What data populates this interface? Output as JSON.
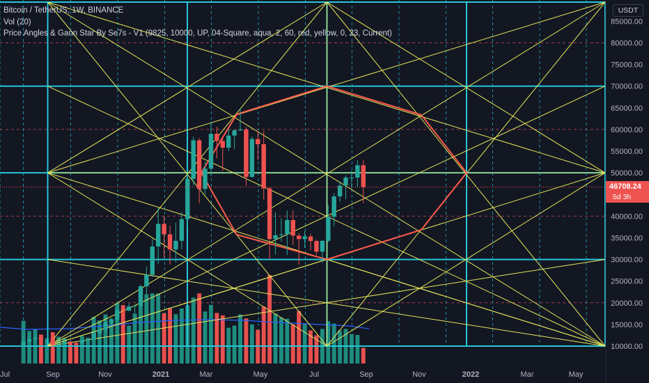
{
  "legend": {
    "title": "Bitcoin / TetherUS, 1W, BINANCE",
    "volume": "Vol (20)",
    "indicator": "Price Angles & Gann Star By Se7s - V1 (9825, 10000, UP, 04-Square, aqua, 2, 60, red, yellow, 0, 23, Current)"
  },
  "price_axis": {
    "unit_label": "USDT",
    "ticks": [
      "85000.00",
      "80000.00",
      "75000.00",
      "70000.00",
      "65000.00",
      "60000.00",
      "55000.00",
      "50000.00",
      "45000.00",
      "40000.00",
      "35000.00",
      "30000.00",
      "25000.00",
      "20000.00",
      "15000.00",
      "10000.00"
    ],
    "current_price": "46708.24",
    "countdown": "5d 3h"
  },
  "time_axis": {
    "ticks": [
      {
        "label": "Jul",
        "bold": false
      },
      {
        "label": "Sep",
        "bold": false
      },
      {
        "label": "Nov",
        "bold": false
      },
      {
        "label": "2021",
        "bold": true
      },
      {
        "label": "Mar",
        "bold": false
      },
      {
        "label": "May",
        "bold": false
      },
      {
        "label": "Jul",
        "bold": false
      },
      {
        "label": "Sep",
        "bold": false
      },
      {
        "label": "Nov",
        "bold": false
      },
      {
        "label": "2022",
        "bold": true
      },
      {
        "label": "Mar",
        "bold": false
      },
      {
        "label": "May",
        "bold": false
      }
    ]
  },
  "colors": {
    "background": "#131722",
    "up": "#26a69a",
    "down": "#ef5350",
    "volume_up": "#1e8c7e",
    "volume_down": "#e8514f",
    "square_lines": "#26c6da",
    "angle_lines": "#e6e65a",
    "star_lines": "#ff5a4d",
    "volume_ma": "#2962ff",
    "axis_text": "#b2b5be"
  },
  "chart_data": {
    "type": "candlestick",
    "title": "Bitcoin / TetherUS, 1W, BINANCE",
    "interval": "1W",
    "ylim": [
      8000,
      88000
    ],
    "x_range": [
      "2020-06-29",
      "2022-06-06"
    ],
    "gann_square": {
      "price_levels": [
        10000,
        30000,
        50000,
        70000,
        90000
      ]
    },
    "candles": [
      {
        "date": "2020-07-27",
        "o": 9950,
        "h": 12100,
        "l": 9850,
        "c": 11050
      },
      {
        "date": "2020-08-03",
        "o": 11050,
        "h": 12100,
        "l": 10800,
        "c": 11570
      },
      {
        "date": "2020-08-10",
        "o": 11570,
        "h": 12480,
        "l": 11150,
        "c": 11850
      },
      {
        "date": "2020-08-17",
        "o": 11850,
        "h": 12450,
        "l": 11350,
        "c": 11650
      },
      {
        "date": "2020-08-24",
        "o": 11650,
        "h": 11950,
        "l": 11150,
        "c": 11700
      },
      {
        "date": "2020-08-31",
        "o": 11700,
        "h": 12050,
        "l": 9850,
        "c": 10250
      },
      {
        "date": "2020-09-07",
        "o": 10250,
        "h": 10750,
        "l": 9900,
        "c": 10350
      },
      {
        "date": "2020-09-14",
        "o": 10350,
        "h": 11200,
        "l": 10300,
        "c": 11050
      },
      {
        "date": "2020-09-21",
        "o": 11050,
        "h": 11100,
        "l": 10150,
        "c": 10750
      },
      {
        "date": "2020-09-28",
        "o": 10750,
        "h": 10950,
        "l": 10350,
        "c": 10650
      },
      {
        "date": "2020-10-05",
        "o": 10650,
        "h": 11450,
        "l": 10550,
        "c": 11380
      },
      {
        "date": "2020-10-12",
        "o": 11380,
        "h": 11750,
        "l": 11200,
        "c": 11500
      },
      {
        "date": "2020-10-19",
        "o": 11500,
        "h": 13250,
        "l": 11400,
        "c": 13050
      },
      {
        "date": "2020-10-26",
        "o": 13050,
        "h": 14000,
        "l": 12900,
        "c": 13800
      },
      {
        "date": "2020-11-02",
        "o": 13800,
        "h": 15950,
        "l": 13300,
        "c": 15480
      },
      {
        "date": "2020-11-09",
        "o": 15480,
        "h": 16500,
        "l": 14800,
        "c": 16050
      },
      {
        "date": "2020-11-16",
        "o": 16050,
        "h": 18800,
        "l": 15900,
        "c": 18400
      },
      {
        "date": "2020-11-23",
        "o": 18400,
        "h": 19450,
        "l": 16250,
        "c": 18200
      },
      {
        "date": "2020-11-30",
        "o": 18200,
        "h": 19900,
        "l": 18000,
        "c": 19150
      },
      {
        "date": "2020-12-07",
        "o": 19150,
        "h": 19400,
        "l": 17600,
        "c": 19300
      },
      {
        "date": "2020-12-14",
        "o": 19300,
        "h": 24200,
        "l": 19000,
        "c": 23800
      },
      {
        "date": "2020-12-21",
        "o": 23800,
        "h": 28400,
        "l": 21900,
        "c": 26450
      },
      {
        "date": "2020-12-28",
        "o": 26450,
        "h": 34800,
        "l": 26000,
        "c": 33000
      },
      {
        "date": "2021-01-04",
        "o": 33000,
        "h": 41950,
        "l": 29000,
        "c": 38200
      },
      {
        "date": "2021-01-11",
        "o": 38200,
        "h": 40100,
        "l": 30400,
        "c": 35800
      },
      {
        "date": "2021-01-18",
        "o": 35800,
        "h": 37850,
        "l": 28800,
        "c": 32300
      },
      {
        "date": "2021-01-25",
        "o": 32300,
        "h": 38500,
        "l": 29300,
        "c": 34300
      },
      {
        "date": "2021-02-01",
        "o": 34300,
        "h": 40950,
        "l": 32300,
        "c": 39300
      },
      {
        "date": "2021-02-08",
        "o": 39300,
        "h": 49700,
        "l": 37500,
        "c": 48600
      },
      {
        "date": "2021-02-15",
        "o": 48600,
        "h": 58350,
        "l": 47100,
        "c": 57500
      },
      {
        "date": "2021-02-22",
        "o": 57500,
        "h": 58000,
        "l": 43000,
        "c": 46250
      },
      {
        "date": "2021-03-01",
        "o": 46250,
        "h": 52600,
        "l": 45000,
        "c": 50950
      },
      {
        "date": "2021-03-08",
        "o": 50950,
        "h": 61800,
        "l": 49300,
        "c": 59000
      },
      {
        "date": "2021-03-15",
        "o": 59000,
        "h": 60600,
        "l": 53300,
        "c": 57350
      },
      {
        "date": "2021-03-22",
        "o": 57350,
        "h": 58400,
        "l": 50400,
        "c": 55800
      },
      {
        "date": "2021-03-29",
        "o": 55800,
        "h": 60200,
        "l": 55000,
        "c": 58600
      },
      {
        "date": "2021-04-05",
        "o": 58600,
        "h": 60050,
        "l": 55500,
        "c": 59800
      },
      {
        "date": "2021-04-12",
        "o": 59800,
        "h": 64850,
        "l": 59600,
        "c": 60000
      },
      {
        "date": "2021-04-19",
        "o": 60000,
        "h": 60500,
        "l": 47000,
        "c": 49050
      },
      {
        "date": "2021-04-26",
        "o": 49050,
        "h": 58400,
        "l": 48800,
        "c": 57800
      },
      {
        "date": "2021-05-03",
        "o": 57800,
        "h": 59600,
        "l": 53000,
        "c": 56600
      },
      {
        "date": "2021-05-10",
        "o": 56600,
        "h": 59600,
        "l": 43800,
        "c": 46400
      },
      {
        "date": "2021-05-17",
        "o": 46400,
        "h": 46700,
        "l": 30000,
        "c": 34700
      },
      {
        "date": "2021-05-24",
        "o": 34700,
        "h": 40900,
        "l": 31100,
        "c": 35600
      },
      {
        "date": "2021-05-31",
        "o": 35600,
        "h": 39500,
        "l": 34100,
        "c": 35800
      },
      {
        "date": "2021-06-07",
        "o": 35800,
        "h": 41300,
        "l": 31000,
        "c": 39100
      },
      {
        "date": "2021-06-14",
        "o": 39100,
        "h": 41300,
        "l": 33300,
        "c": 35500
      },
      {
        "date": "2021-06-21",
        "o": 35500,
        "h": 36000,
        "l": 28800,
        "c": 34700
      },
      {
        "date": "2021-06-28",
        "o": 34700,
        "h": 36600,
        "l": 32700,
        "c": 35300
      },
      {
        "date": "2021-07-05",
        "o": 35300,
        "h": 35900,
        "l": 32100,
        "c": 34250
      },
      {
        "date": "2021-07-12",
        "o": 34250,
        "h": 34550,
        "l": 31000,
        "c": 31800
      },
      {
        "date": "2021-07-19",
        "o": 31800,
        "h": 34500,
        "l": 29300,
        "c": 34300
      },
      {
        "date": "2021-07-26",
        "o": 34300,
        "h": 42600,
        "l": 34000,
        "c": 39850
      },
      {
        "date": "2021-08-02",
        "o": 39850,
        "h": 45300,
        "l": 37600,
        "c": 44550
      },
      {
        "date": "2021-08-09",
        "o": 44550,
        "h": 48100,
        "l": 43300,
        "c": 47050
      },
      {
        "date": "2021-08-16",
        "o": 47050,
        "h": 49400,
        "l": 43900,
        "c": 48900
      },
      {
        "date": "2021-08-23",
        "o": 48900,
        "h": 50500,
        "l": 46300,
        "c": 48900
      },
      {
        "date": "2021-08-30",
        "o": 48900,
        "h": 52900,
        "l": 46600,
        "c": 51750
      },
      {
        "date": "2021-09-06",
        "o": 51750,
        "h": 52900,
        "l": 43000,
        "c": 46710
      }
    ],
    "volume_ylim": [
      0,
      70000
    ]
  }
}
